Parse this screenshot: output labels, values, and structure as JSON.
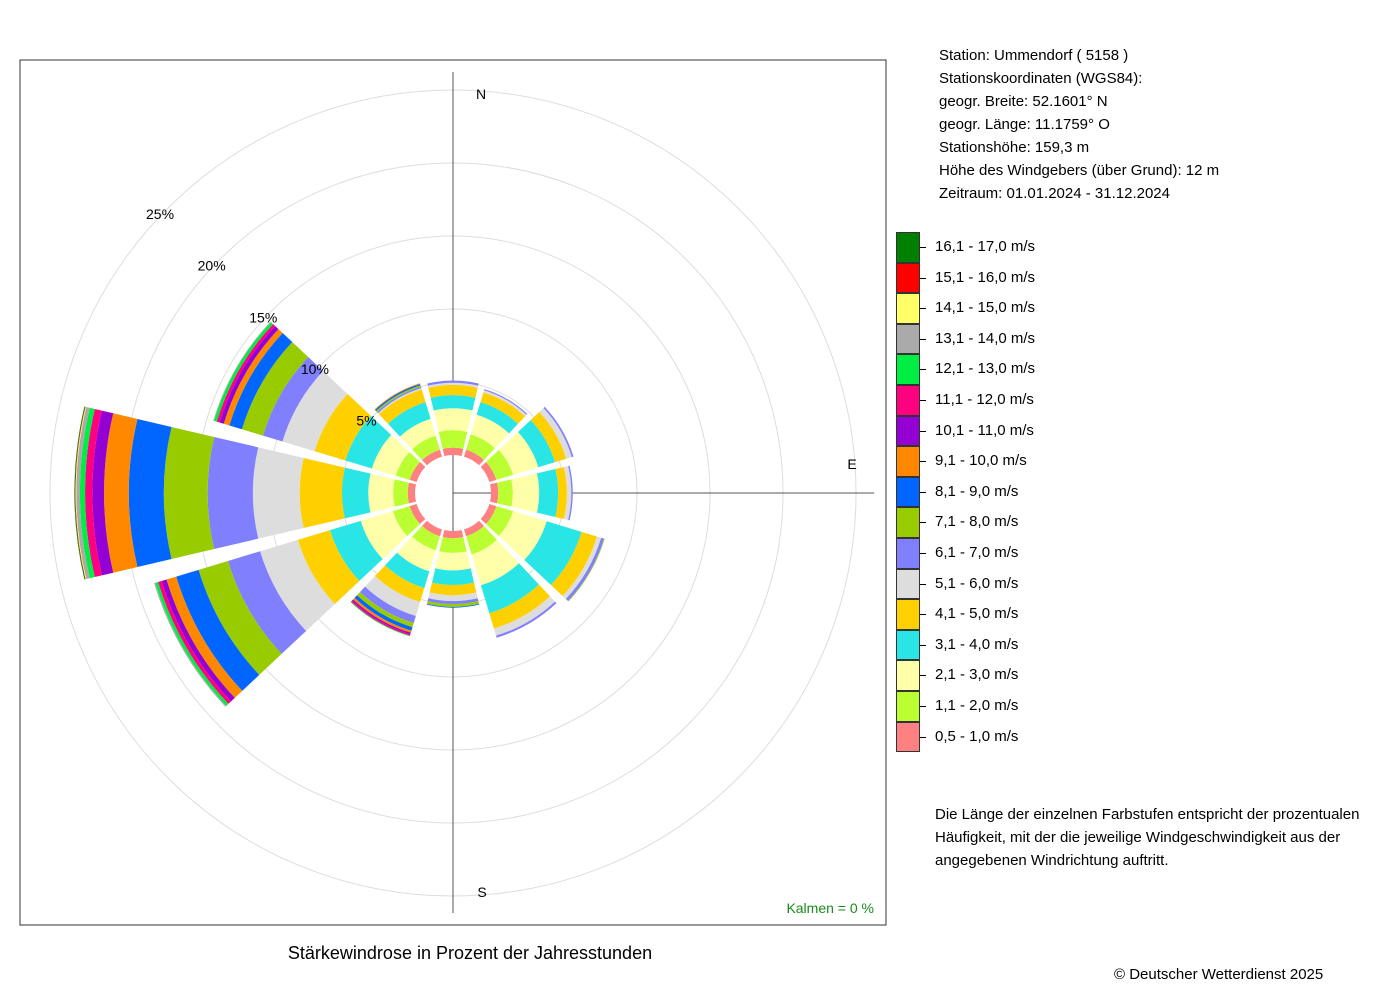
{
  "station_info": {
    "station": "Station:  Ummendorf  ( 5158 )",
    "coords_header": "Stationskoordinaten (WGS84):",
    "lat": "geogr. Breite: 52.1601° N",
    "lon": "geogr. Länge: 11.1759° O",
    "elevation": "Stationshöhe: 159,3 m",
    "sensor_height": "Höhe des Windgebers (über Grund): 12 m",
    "period": "Zeitraum: 01.01.2024 - 31.12.2024"
  },
  "note": "Die Länge der einzelnen Farbstufen entspricht der prozentualen Häufigkeit, mit der die jeweilige Windgeschwindigkeit aus der angegebenen Windrichtung auftritt.",
  "title": "Stärkewindrose in Prozent der Jahresstunden",
  "calm_label": "Kalmen  =  0 %",
  "credit": "© Deutscher Wetterdienst  2025",
  "legend": [
    {
      "label": "16,1 - 17,0 m/s",
      "color": "#008000"
    },
    {
      "label": "15,1 - 16,0 m/s",
      "color": "#ff0000"
    },
    {
      "label": "14,1 - 15,0 m/s",
      "color": "#ffff66"
    },
    {
      "label": "13,1 - 14,0 m/s",
      "color": "#aaaaaa"
    },
    {
      "label": "12,1 - 13,0 m/s",
      "color": "#00ee44"
    },
    {
      "label": "11,1 - 12,0 m/s",
      "color": "#ff0080"
    },
    {
      "label": "10,1 - 11,0 m/s",
      "color": "#9400d3"
    },
    {
      "label": "9,1 - 10,0 m/s",
      "color": "#ff8800"
    },
    {
      "label": "8,1 - 9,0 m/s",
      "color": "#0066ff"
    },
    {
      "label": "7,1 - 8,0 m/s",
      "color": "#99cc00"
    },
    {
      "label": "6,1 - 7,0 m/s",
      "color": "#8080ff"
    },
    {
      "label": "5,1 - 6,0 m/s",
      "color": "#dddddd"
    },
    {
      "label": "4,1 - 5,0 m/s",
      "color": "#ffd000"
    },
    {
      "label": "3,1 - 4,0 m/s",
      "color": "#2ae5e5"
    },
    {
      "label": "2,1 - 3,0 m/s",
      "color": "#ffffaa"
    },
    {
      "label": "1,1 - 2,0 m/s",
      "color": "#bbff33"
    },
    {
      "label": "0,5 - 1,0 m/s",
      "color": "#ff8080"
    }
  ],
  "chart_data": {
    "type": "windrose",
    "unit": "%",
    "rings": [
      5,
      10,
      15,
      20,
      25
    ],
    "ring_labels": [
      "5%",
      "10%",
      "15%",
      "20%",
      "25%"
    ],
    "directions_deg": [
      0,
      30,
      60,
      90,
      120,
      150,
      180,
      210,
      240,
      270,
      300,
      330
    ],
    "direction_labels": {
      "N": 0,
      "E": 90,
      "S": 180
    },
    "speed_classes": [
      "0,5 - 1,0 m/s",
      "1,1 - 2,0 m/s",
      "2,1 - 3,0 m/s",
      "3,1 - 4,0 m/s",
      "4,1 - 5,0 m/s",
      "5,1 - 6,0 m/s",
      "6,1 - 7,0 m/s",
      "7,1 - 8,0 m/s",
      "8,1 - 9,0 m/s",
      "9,1 - 10,0 m/s",
      "10,1 - 11,0 m/s",
      "11,1 - 12,0 m/s",
      "12,1 - 13,0 m/s",
      "13,1 - 14,0 m/s",
      "14,1 - 15,0 m/s",
      "15,1 - 16,0 m/s",
      "16,1 - 17,0 m/s"
    ],
    "sectors": [
      {
        "dir": 0,
        "values": [
          0.5,
          1.2,
          1.5,
          0.9,
          0.7,
          0.15,
          0.15,
          0,
          0,
          0,
          0,
          0,
          0,
          0,
          0,
          0,
          0
        ]
      },
      {
        "dir": 30,
        "values": [
          0.5,
          1.1,
          1.4,
          0.9,
          0.7,
          0.15,
          0.08,
          0,
          0,
          0,
          0,
          0,
          0,
          0,
          0,
          0,
          0
        ]
      },
      {
        "dir": 60,
        "values": [
          0.5,
          1.2,
          1.8,
          1.2,
          0.8,
          0.4,
          0.12,
          0,
          0,
          0,
          0,
          0,
          0,
          0,
          0,
          0,
          0
        ]
      },
      {
        "dir": 90,
        "values": [
          0.5,
          1.0,
          1.8,
          1.3,
          0.6,
          0.3,
          0.1,
          0,
          0,
          0,
          0,
          0,
          0,
          0,
          0,
          0,
          0
        ]
      },
      {
        "dir": 120,
        "values": [
          0.5,
          1.2,
          2.4,
          2.5,
          1.1,
          0.3,
          0.2,
          0.05,
          0,
          0,
          0,
          0,
          0,
          0,
          0,
          0,
          0
        ]
      },
      {
        "dir": 150,
        "values": [
          0.5,
          1.3,
          2.2,
          2.0,
          1.1,
          0.5,
          0.15,
          0,
          0,
          0,
          0,
          0,
          0,
          0,
          0,
          0,
          0
        ]
      },
      {
        "dir": 180,
        "values": [
          0.5,
          1.0,
          1.2,
          1.0,
          0.7,
          0.4,
          0.2,
          0.2,
          0.05,
          0,
          0,
          0,
          0,
          0,
          0,
          0,
          0
        ]
      },
      {
        "dir": 210,
        "values": [
          0.5,
          1.0,
          1.5,
          1.2,
          1.0,
          1.0,
          0.5,
          0.3,
          0.25,
          0.15,
          0.1,
          0.1,
          0.05,
          0,
          0,
          0,
          0
        ]
      },
      {
        "dir": 240,
        "values": [
          0.5,
          1.2,
          2.3,
          2.2,
          2.3,
          2.7,
          2.3,
          2.1,
          1.6,
          0.7,
          0.35,
          0.25,
          0.2,
          0.08,
          0,
          0,
          0
        ]
      },
      {
        "dir": 270,
        "values": [
          0.5,
          1.0,
          1.7,
          1.8,
          2.9,
          3.2,
          3.1,
          3.0,
          2.4,
          1.7,
          0.8,
          0.5,
          0.35,
          0.25,
          0.05,
          0.03,
          0.05
        ]
      },
      {
        "dir": 300,
        "values": [
          0.5,
          1.0,
          1.7,
          1.9,
          2.2,
          2.3,
          1.4,
          1.5,
          0.9,
          0.4,
          0.3,
          0.2,
          0.2,
          0.05,
          0,
          0,
          0
        ]
      },
      {
        "dir": 330,
        "values": [
          0.5,
          1.0,
          1.2,
          1.2,
          0.9,
          0.1,
          0.1,
          0.1,
          0.1,
          0.05,
          0,
          0,
          0,
          0,
          0,
          0,
          0
        ]
      }
    ]
  }
}
